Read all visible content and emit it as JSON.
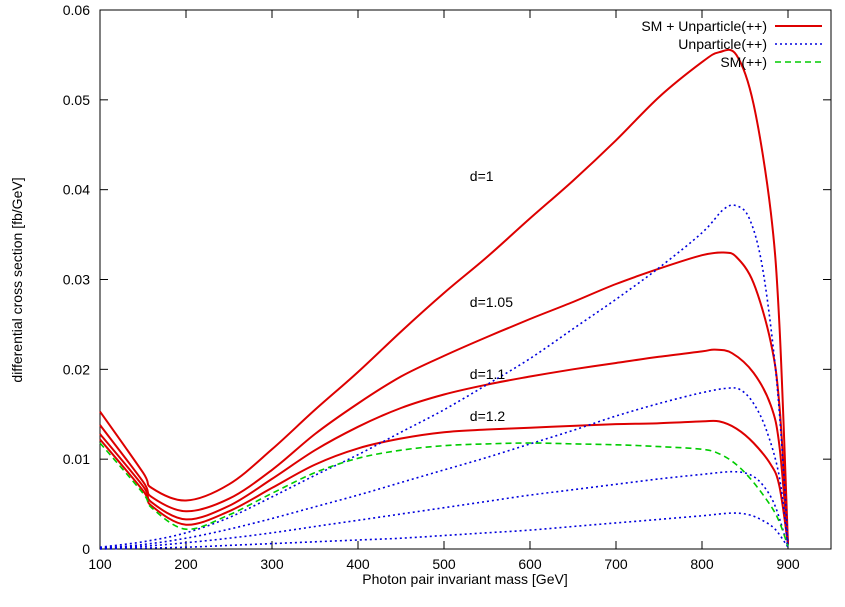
{
  "chart_data": {
    "type": "line",
    "xlabel": "Photon pair invariant mass [GeV]",
    "ylabel": "differential cross section [fb/GeV]",
    "xlim": [
      100,
      950
    ],
    "ylim": [
      0,
      0.06
    ],
    "xticks": [
      "100",
      "200",
      "300",
      "400",
      "500",
      "600",
      "700",
      "800",
      "900"
    ],
    "yticks": [
      "0",
      "0.01",
      "0.02",
      "0.03",
      "0.04",
      "0.05",
      "0.06"
    ],
    "legend_position": "top-right",
    "legend": [
      {
        "label": "SM + Unparticle(++)",
        "color": "#dd0000",
        "dash": "solid"
      },
      {
        "label": "Unparticle(++)",
        "color": "#0000dd",
        "dash": "dotted"
      },
      {
        "label": "SM(++)",
        "color": "#00cc00",
        "dash": "dashed"
      }
    ],
    "annotations": [
      {
        "text": "d=1",
        "x": 530,
        "y": 0.0415
      },
      {
        "text": "d=1.05",
        "x": 530,
        "y": 0.0275
      },
      {
        "text": "d=1.1",
        "x": 530,
        "y": 0.0195
      },
      {
        "text": "d=1.2",
        "x": 530,
        "y": 0.0148
      }
    ],
    "series": [
      {
        "group": "SM + Unparticle(++)",
        "d": "1",
        "color": "#dd0000",
        "dash": "solid",
        "points": [
          [
            100,
            0.0153
          ],
          [
            150,
            0.0085
          ],
          [
            160,
            0.0068
          ],
          [
            200,
            0.0054
          ],
          [
            250,
            0.0072
          ],
          [
            300,
            0.0111
          ],
          [
            350,
            0.0155
          ],
          [
            400,
            0.0197
          ],
          [
            450,
            0.0242
          ],
          [
            500,
            0.0285
          ],
          [
            550,
            0.0325
          ],
          [
            600,
            0.0368
          ],
          [
            650,
            0.041
          ],
          [
            700,
            0.0455
          ],
          [
            750,
            0.0503
          ],
          [
            800,
            0.0542
          ],
          [
            820,
            0.0553
          ],
          [
            840,
            0.055
          ],
          [
            860,
            0.0495
          ],
          [
            880,
            0.0375
          ],
          [
            890,
            0.025
          ],
          [
            900,
            0.0005
          ]
        ]
      },
      {
        "group": "SM + Unparticle(++)",
        "d": "1.05",
        "color": "#dd0000",
        "dash": "solid",
        "points": [
          [
            100,
            0.0138
          ],
          [
            150,
            0.0075
          ],
          [
            160,
            0.0058
          ],
          [
            200,
            0.0042
          ],
          [
            250,
            0.0056
          ],
          [
            300,
            0.0088
          ],
          [
            350,
            0.0128
          ],
          [
            400,
            0.0162
          ],
          [
            450,
            0.0192
          ],
          [
            500,
            0.0215
          ],
          [
            550,
            0.0236
          ],
          [
            600,
            0.0256
          ],
          [
            650,
            0.0275
          ],
          [
            700,
            0.0295
          ],
          [
            750,
            0.0312
          ],
          [
            800,
            0.0327
          ],
          [
            825,
            0.033
          ],
          [
            840,
            0.0325
          ],
          [
            860,
            0.0296
          ],
          [
            880,
            0.023
          ],
          [
            890,
            0.016
          ],
          [
            900,
            0.0005
          ]
        ]
      },
      {
        "group": "SM + Unparticle(++)",
        "d": "1.1",
        "color": "#dd0000",
        "dash": "solid",
        "points": [
          [
            100,
            0.0128
          ],
          [
            150,
            0.007
          ],
          [
            160,
            0.0052
          ],
          [
            200,
            0.0033
          ],
          [
            250,
            0.0048
          ],
          [
            300,
            0.0078
          ],
          [
            350,
            0.011
          ],
          [
            400,
            0.0136
          ],
          [
            450,
            0.0157
          ],
          [
            500,
            0.0172
          ],
          [
            550,
            0.0183
          ],
          [
            600,
            0.0192
          ],
          [
            650,
            0.02
          ],
          [
            700,
            0.0207
          ],
          [
            750,
            0.0214
          ],
          [
            800,
            0.022
          ],
          [
            815,
            0.0222
          ],
          [
            835,
            0.0218
          ],
          [
            860,
            0.0196
          ],
          [
            880,
            0.016
          ],
          [
            890,
            0.0115
          ],
          [
            900,
            0.0005
          ]
        ]
      },
      {
        "group": "SM + Unparticle(++)",
        "d": "1.2",
        "color": "#dd0000",
        "dash": "solid",
        "points": [
          [
            100,
            0.0122
          ],
          [
            150,
            0.0065
          ],
          [
            160,
            0.0048
          ],
          [
            200,
            0.0027
          ],
          [
            250,
            0.0042
          ],
          [
            300,
            0.0068
          ],
          [
            350,
            0.0094
          ],
          [
            400,
            0.0112
          ],
          [
            450,
            0.0123
          ],
          [
            500,
            0.013
          ],
          [
            550,
            0.0133
          ],
          [
            600,
            0.0135
          ],
          [
            650,
            0.0137
          ],
          [
            700,
            0.0139
          ],
          [
            750,
            0.014
          ],
          [
            800,
            0.0142
          ],
          [
            820,
            0.0142
          ],
          [
            840,
            0.0134
          ],
          [
            860,
            0.0118
          ],
          [
            880,
            0.0094
          ],
          [
            890,
            0.007
          ],
          [
            900,
            0.0005
          ]
        ]
      },
      {
        "group": "Unparticle(++)",
        "d": "1",
        "color": "#0000dd",
        "dash": "dotted",
        "points": [
          [
            100,
            0.0002
          ],
          [
            150,
            0.0008
          ],
          [
            200,
            0.0018
          ],
          [
            250,
            0.0035
          ],
          [
            300,
            0.0058
          ],
          [
            350,
            0.0082
          ],
          [
            400,
            0.0105
          ],
          [
            450,
            0.013
          ],
          [
            500,
            0.0155
          ],
          [
            550,
            0.0183
          ],
          [
            600,
            0.0212
          ],
          [
            650,
            0.0245
          ],
          [
            700,
            0.0278
          ],
          [
            750,
            0.0313
          ],
          [
            800,
            0.0352
          ],
          [
            825,
            0.0378
          ],
          [
            840,
            0.0382
          ],
          [
            855,
            0.0368
          ],
          [
            870,
            0.0315
          ],
          [
            885,
            0.0205
          ],
          [
            895,
            0.0085
          ],
          [
            900,
            0.0002
          ]
        ]
      },
      {
        "group": "Unparticle(++)",
        "d": "1.05",
        "color": "#0000dd",
        "dash": "dotted",
        "points": [
          [
            100,
            0.0001
          ],
          [
            150,
            0.0005
          ],
          [
            200,
            0.0012
          ],
          [
            250,
            0.0022
          ],
          [
            300,
            0.0034
          ],
          [
            350,
            0.0047
          ],
          [
            400,
            0.006
          ],
          [
            450,
            0.0074
          ],
          [
            500,
            0.0088
          ],
          [
            550,
            0.0102
          ],
          [
            600,
            0.0117
          ],
          [
            650,
            0.0132
          ],
          [
            700,
            0.0148
          ],
          [
            750,
            0.0162
          ],
          [
            800,
            0.0174
          ],
          [
            830,
            0.0179
          ],
          [
            845,
            0.0177
          ],
          [
            860,
            0.0162
          ],
          [
            875,
            0.0132
          ],
          [
            890,
            0.008
          ],
          [
            900,
            0.0002
          ]
        ]
      },
      {
        "group": "Unparticle(++)",
        "d": "1.1",
        "color": "#0000dd",
        "dash": "dotted",
        "points": [
          [
            100,
            0.0001
          ],
          [
            150,
            0.0003
          ],
          [
            200,
            0.0007
          ],
          [
            250,
            0.0012
          ],
          [
            300,
            0.0018
          ],
          [
            350,
            0.0025
          ],
          [
            400,
            0.0032
          ],
          [
            450,
            0.0039
          ],
          [
            500,
            0.0046
          ],
          [
            550,
            0.0053
          ],
          [
            600,
            0.006
          ],
          [
            650,
            0.0066
          ],
          [
            700,
            0.0072
          ],
          [
            750,
            0.0078
          ],
          [
            800,
            0.0083
          ],
          [
            835,
            0.0086
          ],
          [
            855,
            0.0083
          ],
          [
            870,
            0.0072
          ],
          [
            885,
            0.0048
          ],
          [
            900,
            0.0002
          ]
        ]
      },
      {
        "group": "Unparticle(++)",
        "d": "1.2",
        "color": "#0000dd",
        "dash": "dotted",
        "points": [
          [
            100,
            0.0
          ],
          [
            150,
            0.0001
          ],
          [
            200,
            0.0002
          ],
          [
            250,
            0.0004
          ],
          [
            300,
            0.0006
          ],
          [
            350,
            0.0008
          ],
          [
            400,
            0.001
          ],
          [
            450,
            0.0012
          ],
          [
            500,
            0.0015
          ],
          [
            550,
            0.0018
          ],
          [
            600,
            0.0021
          ],
          [
            650,
            0.0025
          ],
          [
            700,
            0.0029
          ],
          [
            750,
            0.0033
          ],
          [
            800,
            0.0037
          ],
          [
            835,
            0.004
          ],
          [
            855,
            0.0038
          ],
          [
            870,
            0.0032
          ],
          [
            885,
            0.0022
          ],
          [
            900,
            0.0002
          ]
        ]
      },
      {
        "group": "SM(++)",
        "d": "",
        "color": "#00cc00",
        "dash": "dashed",
        "points": [
          [
            100,
            0.0118
          ],
          [
            150,
            0.0062
          ],
          [
            160,
            0.0046
          ],
          [
            200,
            0.0022
          ],
          [
            250,
            0.0038
          ],
          [
            300,
            0.0062
          ],
          [
            350,
            0.0085
          ],
          [
            400,
            0.0101
          ],
          [
            450,
            0.011
          ],
          [
            500,
            0.0115
          ],
          [
            550,
            0.0117
          ],
          [
            600,
            0.0118
          ],
          [
            650,
            0.0117
          ],
          [
            700,
            0.0116
          ],
          [
            750,
            0.0114
          ],
          [
            800,
            0.0111
          ],
          [
            820,
            0.0106
          ],
          [
            840,
            0.0094
          ],
          [
            860,
            0.0074
          ],
          [
            880,
            0.0048
          ],
          [
            890,
            0.003
          ],
          [
            900,
            0.0003
          ]
        ]
      }
    ]
  }
}
